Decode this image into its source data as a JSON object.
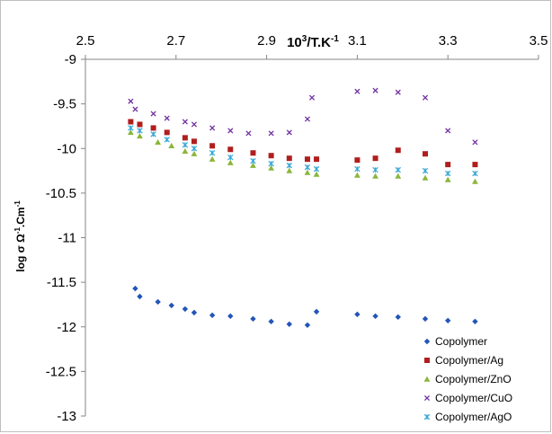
{
  "chart_data": {
    "type": "scatter",
    "title": "",
    "xlabel": "10³/T.K⁻¹",
    "ylabel": "log σ  Ω⁻¹.Cm⁻¹",
    "xlim": [
      2.5,
      3.5
    ],
    "ylim": [
      -13,
      -9
    ],
    "x_ticks": [
      "2.5",
      "2.7",
      "2.9",
      "3.1",
      "3.3",
      "3.5"
    ],
    "y_ticks": [
      "-9",
      "-9.5",
      "-10",
      "-10.5",
      "-11",
      "-11.5",
      "-12",
      "-12.5",
      "-13"
    ],
    "x_axis_position": "top",
    "grid": false,
    "legend_position": "bottom-right",
    "series": [
      {
        "name": "Copolymer",
        "marker": "diamond",
        "color": "#2255b8",
        "points": [
          [
            2.61,
            -11.57
          ],
          [
            2.62,
            -11.66
          ],
          [
            2.66,
            -11.72
          ],
          [
            2.69,
            -11.76
          ],
          [
            2.72,
            -11.8
          ],
          [
            2.74,
            -11.84
          ],
          [
            2.78,
            -11.87
          ],
          [
            2.82,
            -11.88
          ],
          [
            2.87,
            -11.91
          ],
          [
            2.91,
            -11.94
          ],
          [
            2.95,
            -11.97
          ],
          [
            2.99,
            -11.98
          ],
          [
            3.01,
            -11.83
          ],
          [
            3.1,
            -11.86
          ],
          [
            3.14,
            -11.88
          ],
          [
            3.19,
            -11.89
          ],
          [
            3.25,
            -11.91
          ],
          [
            3.3,
            -11.93
          ],
          [
            3.36,
            -11.94
          ]
        ]
      },
      {
        "name": "Copolymer/Ag",
        "marker": "square",
        "color": "#b01e1e",
        "points": [
          [
            2.6,
            -9.7
          ],
          [
            2.62,
            -9.73
          ],
          [
            2.65,
            -9.77
          ],
          [
            2.68,
            -9.82
          ],
          [
            2.72,
            -9.88
          ],
          [
            2.74,
            -9.92
          ],
          [
            2.78,
            -9.97
          ],
          [
            2.82,
            -10.01
          ],
          [
            2.87,
            -10.05
          ],
          [
            2.91,
            -10.08
          ],
          [
            2.95,
            -10.11
          ],
          [
            2.99,
            -10.12
          ],
          [
            3.01,
            -10.12
          ],
          [
            3.1,
            -10.13
          ],
          [
            3.14,
            -10.11
          ],
          [
            3.19,
            -10.02
          ],
          [
            3.25,
            -10.06
          ],
          [
            3.3,
            -10.18
          ],
          [
            3.36,
            -10.18
          ]
        ]
      },
      {
        "name": "Copolymer/ZnO",
        "marker": "triangle",
        "color": "#8ab63a",
        "points": [
          [
            2.6,
            -9.82
          ],
          [
            2.62,
            -9.86
          ],
          [
            2.66,
            -9.93
          ],
          [
            2.69,
            -9.97
          ],
          [
            2.72,
            -10.03
          ],
          [
            2.74,
            -10.06
          ],
          [
            2.78,
            -10.12
          ],
          [
            2.82,
            -10.16
          ],
          [
            2.87,
            -10.19
          ],
          [
            2.91,
            -10.22
          ],
          [
            2.95,
            -10.25
          ],
          [
            2.99,
            -10.27
          ],
          [
            3.01,
            -10.29
          ],
          [
            3.1,
            -10.3
          ],
          [
            3.14,
            -10.31
          ],
          [
            3.19,
            -10.31
          ],
          [
            3.25,
            -10.33
          ],
          [
            3.3,
            -10.35
          ],
          [
            3.36,
            -10.37
          ]
        ]
      },
      {
        "name": "Copolymer/CuO",
        "marker": "x",
        "color": "#7030a0",
        "points": [
          [
            2.6,
            -9.47
          ],
          [
            2.61,
            -9.56
          ],
          [
            2.65,
            -9.61
          ],
          [
            2.68,
            -9.66
          ],
          [
            2.72,
            -9.7
          ],
          [
            2.74,
            -9.73
          ],
          [
            2.78,
            -9.77
          ],
          [
            2.82,
            -9.8
          ],
          [
            2.86,
            -9.83
          ],
          [
            2.91,
            -9.83
          ],
          [
            2.95,
            -9.82
          ],
          [
            2.99,
            -9.67
          ],
          [
            3.0,
            -9.43
          ],
          [
            3.1,
            -9.36
          ],
          [
            3.14,
            -9.35
          ],
          [
            3.19,
            -9.37
          ],
          [
            3.25,
            -9.43
          ],
          [
            3.3,
            -9.8
          ],
          [
            3.36,
            -9.93
          ]
        ]
      },
      {
        "name": "Copolymer/AgO",
        "marker": "asterisk",
        "color": "#33a6d6",
        "points": [
          [
            2.6,
            -9.77
          ],
          [
            2.62,
            -9.8
          ],
          [
            2.65,
            -9.84
          ],
          [
            2.68,
            -9.9
          ],
          [
            2.72,
            -9.96
          ],
          [
            2.74,
            -10.0
          ],
          [
            2.78,
            -10.05
          ],
          [
            2.82,
            -10.1
          ],
          [
            2.87,
            -10.14
          ],
          [
            2.91,
            -10.17
          ],
          [
            2.95,
            -10.19
          ],
          [
            2.99,
            -10.21
          ],
          [
            3.01,
            -10.23
          ],
          [
            3.1,
            -10.23
          ],
          [
            3.14,
            -10.24
          ],
          [
            3.19,
            -10.24
          ],
          [
            3.25,
            -10.25
          ],
          [
            3.3,
            -10.28
          ],
          [
            3.36,
            -10.28
          ]
        ]
      }
    ]
  }
}
